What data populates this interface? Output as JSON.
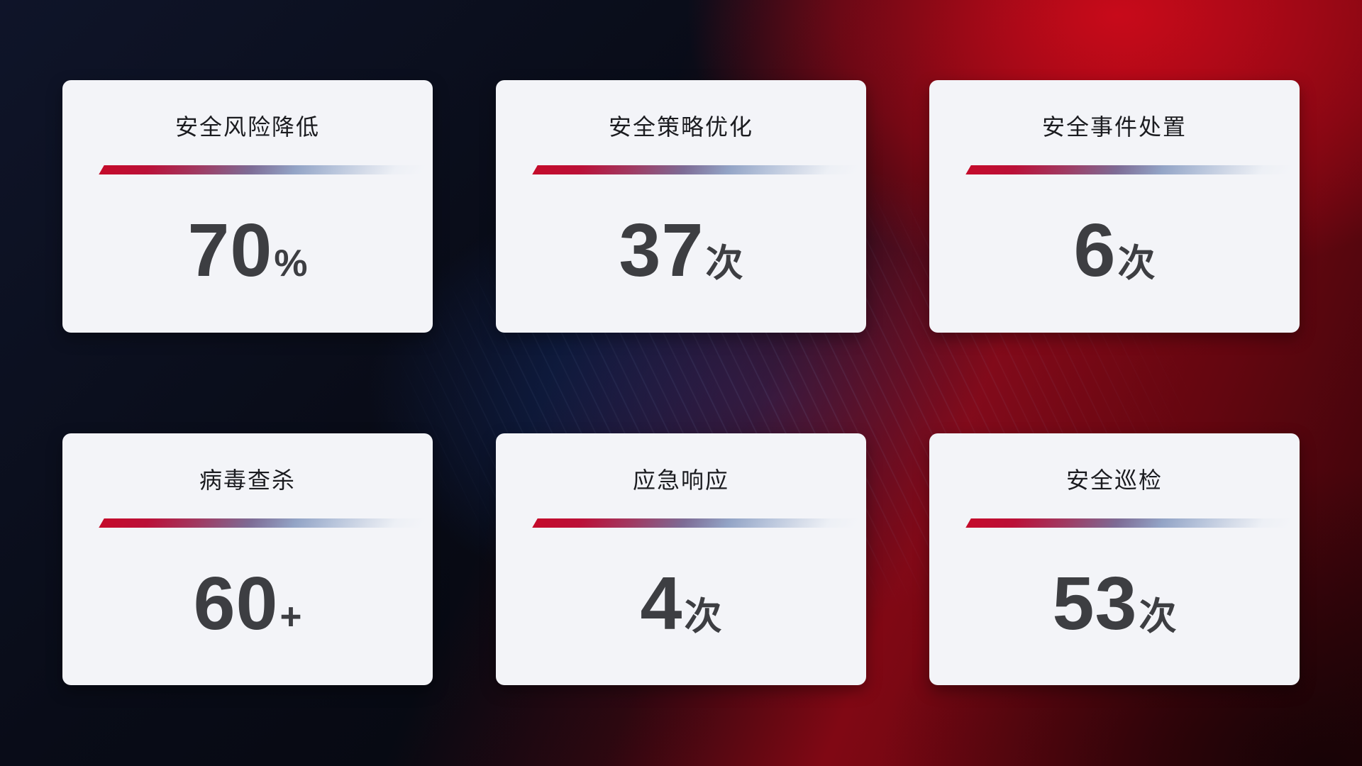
{
  "dashboard": {
    "cards": [
      {
        "title": "安全风险降低",
        "value": "70",
        "unit": "%"
      },
      {
        "title": "安全策略优化",
        "value": "37",
        "unit": "次"
      },
      {
        "title": "安全事件处置",
        "value": "6",
        "unit": "次"
      },
      {
        "title": "病毒查杀",
        "value": "60",
        "unit": "+"
      },
      {
        "title": "应急响应",
        "value": "4",
        "unit": "次"
      },
      {
        "title": "安全巡检",
        "value": "53",
        "unit": "次"
      }
    ],
    "colors": {
      "accent_red": "#c40b2b",
      "divider_blue_gray": "#b7c4db",
      "card_background": "#f3f4f8",
      "title_text": "#1b1c20",
      "value_text": "#3d3e42",
      "background_navy": "#0a0e1f",
      "background_red": "#a80816",
      "background_blue_glow": "#183480"
    }
  }
}
